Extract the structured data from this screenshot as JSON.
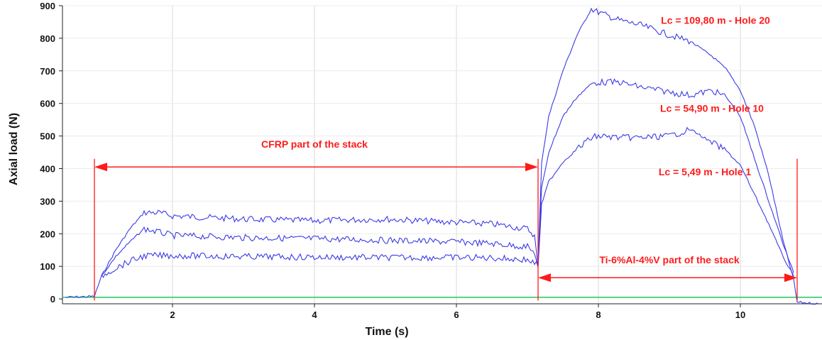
{
  "chart_data": {
    "type": "line",
    "xlabel": "Time (s)",
    "ylabel": "Axial load (N)",
    "xlim": [
      0.45,
      11.15
    ],
    "ylim": [
      -15,
      900
    ],
    "x_ticks": [
      2,
      4,
      6,
      8,
      10
    ],
    "y_ticks": [
      0,
      100,
      200,
      300,
      400,
      500,
      600,
      700,
      800,
      900
    ],
    "grid": true,
    "colors": {
      "series": "#3a3ae8",
      "baseline": "#33cc66",
      "annotation": "#ff1a1a",
      "grid": "#d8d8d8"
    },
    "series": [
      {
        "name": "Lc = 109,80 m - Hole 20",
        "x": [
          0.5,
          0.9,
          1.0,
          1.2,
          1.4,
          1.6,
          1.8,
          2.0,
          3.0,
          4.0,
          5.0,
          6.0,
          6.5,
          7.0,
          7.1,
          7.15,
          7.2,
          7.3,
          7.5,
          7.7,
          7.9,
          8.0,
          8.3,
          8.6,
          9.0,
          9.3,
          9.6,
          9.8,
          10.0,
          10.2,
          10.4,
          10.6,
          10.75,
          10.8,
          11.1
        ],
        "y": [
          5,
          8,
          70,
          150,
          215,
          265,
          265,
          255,
          245,
          240,
          245,
          235,
          230,
          215,
          195,
          100,
          420,
          560,
          700,
          810,
          890,
          880,
          855,
          840,
          810,
          790,
          745,
          705,
          640,
          530,
          380,
          180,
          60,
          -10,
          -15
        ]
      },
      {
        "name": "Lc = 54,90 m - Hole 10",
        "x": [
          1.0,
          1.2,
          1.4,
          1.6,
          1.8,
          2.0,
          3.0,
          4.0,
          5.0,
          6.0,
          6.5,
          7.0,
          7.1,
          7.15,
          7.2,
          7.3,
          7.5,
          7.7,
          7.9,
          8.0,
          8.3,
          8.6,
          9.0,
          9.3,
          9.6,
          9.8,
          10.0,
          10.2,
          10.4,
          10.6,
          10.75
        ],
        "y": [
          70,
          130,
          175,
          215,
          205,
          195,
          188,
          185,
          180,
          175,
          170,
          160,
          140,
          100,
          340,
          450,
          560,
          620,
          660,
          665,
          665,
          650,
          635,
          625,
          640,
          620,
          560,
          430,
          300,
          170,
          80
        ]
      },
      {
        "name": "Lc = 5,49 m - Hole 1",
        "x": [
          1.0,
          1.2,
          1.4,
          1.6,
          1.8,
          2.0,
          3.0,
          4.0,
          5.0,
          6.0,
          6.5,
          7.0,
          7.1,
          7.15,
          7.2,
          7.3,
          7.5,
          7.7,
          7.9,
          8.0,
          8.3,
          8.6,
          9.0,
          9.3,
          9.6,
          9.8,
          10.0,
          10.2,
          10.4,
          10.6,
          10.75
        ],
        "y": [
          70,
          95,
          115,
          132,
          133,
          133,
          130,
          128,
          127,
          127,
          126,
          120,
          110,
          100,
          290,
          360,
          420,
          460,
          495,
          500,
          495,
          495,
          500,
          520,
          480,
          455,
          410,
          320,
          230,
          130,
          70
        ]
      }
    ],
    "baseline": {
      "x": [
        0.45,
        11.15
      ],
      "y": [
        5,
        5
      ]
    },
    "annotations": {
      "cfrp": {
        "text": "CFRP part of the stack",
        "x_start": 0.9,
        "x_end": 7.15,
        "y": 405
      },
      "ti": {
        "text": "Ti-6%Al-4%V part of the stack",
        "x_start": 7.15,
        "x_end": 10.8,
        "y": 65
      },
      "markers": [
        0.9,
        7.15,
        10.8
      ],
      "label_hole20": {
        "text": "Lc = 109,80 m - Hole 20",
        "x": 9.65,
        "y": 855
      },
      "label_hole10": {
        "text": "Lc = 54,90 m - Hole 10",
        "x": 9.6,
        "y": 585
      },
      "label_hole1": {
        "text": "Lc = 5,49 m - Hole 1",
        "x": 9.5,
        "y": 390
      },
      "label_cfrp_pos": {
        "x": 4.0,
        "y": 475
      },
      "label_ti_pos": {
        "x": 9.0,
        "y": 120
      }
    }
  }
}
